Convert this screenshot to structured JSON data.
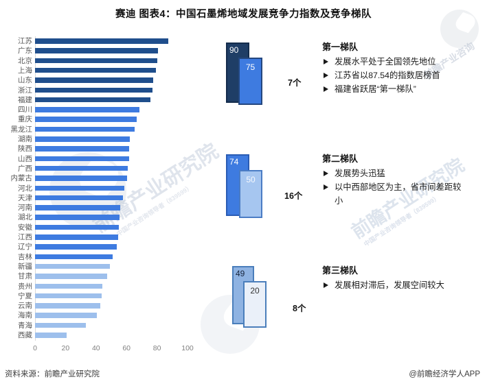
{
  "title": "赛迪 图表4：中国石墨烯地域发展竞争力指数及竞争梯队",
  "chart_data": {
    "type": "bar",
    "orientation": "horizontal",
    "title": "中国石墨烯地域发展竞争力指数",
    "xlabel": "",
    "ylabel": "",
    "xlim": [
      0,
      100
    ],
    "x_ticks": [
      0,
      20,
      40,
      60,
      80,
      100
    ],
    "grid": false,
    "categories": [
      "江苏",
      "广东",
      "北京",
      "上海",
      "山东",
      "浙江",
      "福建",
      "四川",
      "重庆",
      "黑龙江",
      "湖南",
      "陕西",
      "山西",
      "广西",
      "内蒙古",
      "河北",
      "天津",
      "河南",
      "湖北",
      "安徽",
      "江西",
      "辽宁",
      "吉林",
      "新疆",
      "甘肃",
      "贵州",
      "宁夏",
      "云南",
      "海南",
      "青海",
      "西藏"
    ],
    "values": [
      87.5,
      80.5,
      80,
      79.5,
      77.5,
      77,
      75.5,
      68.5,
      66.5,
      65.5,
      62,
      61.5,
      61.5,
      61,
      60.5,
      58.5,
      57.5,
      56,
      55.5,
      55,
      54.5,
      53.5,
      51,
      49,
      47.5,
      44,
      43.5,
      43,
      40.5,
      33.5,
      20.5
    ],
    "tier_of_bar": [
      1,
      1,
      1,
      1,
      1,
      1,
      1,
      2,
      2,
      2,
      2,
      2,
      2,
      2,
      2,
      2,
      2,
      2,
      2,
      2,
      2,
      2,
      2,
      3,
      3,
      3,
      3,
      3,
      3,
      3,
      3
    ],
    "tier_colors": {
      "1": "#1F4E8C",
      "2": "#3E7BE0",
      "3": "#9DBFEC"
    }
  },
  "tiers": [
    {
      "name": "第一梯队",
      "count_label": "7个",
      "box_high": {
        "value": "90",
        "fill": "#1F3E66",
        "border": "#142C4C",
        "text_color": "#ffffff"
      },
      "box_low": {
        "value": "75",
        "fill": "#3E7BE0",
        "border": "#24477E",
        "text_color": "#ffffff"
      },
      "bullets": [
        "发展水平处于全国领先地位",
        "江苏省以87.54的指数居榜首",
        "福建省跃居“第一梯队”"
      ]
    },
    {
      "name": "第二梯队",
      "count_label": "16个",
      "box_high": {
        "value": "74",
        "fill": "#3E7BE0",
        "border": "#2A5CB4",
        "text_color": "#ffffff"
      },
      "box_low": {
        "value": "50",
        "fill": "#A6C6F0",
        "border": "#4A7CC4",
        "text_color": "#f5f8fd"
      },
      "bullets": [
        "发展势头迅猛",
        "以中西部地区为主，省市间差距较小"
      ]
    },
    {
      "name": "第三梯队",
      "count_label": "8个",
      "box_high": {
        "value": "49",
        "fill": "#8FB3E2",
        "border": "#4A7EBB",
        "text_color": "#16243c"
      },
      "box_low": {
        "value": "20",
        "fill": "#EAF0F9",
        "border": "#4A7EBB",
        "text_color": "#333333"
      },
      "bullets": [
        "发展相对滞后，发展空间较大"
      ]
    }
  ],
  "footer": {
    "source": "资料来源：前瞻产业研究院",
    "credit": "@前瞻经济学人APP"
  },
  "watermarks": {
    "brand_text": "前瞻产业研究院",
    "brand_text_short": "前瞻产业咨询",
    "small_text": "中国产业咨询领导者（839599）"
  }
}
